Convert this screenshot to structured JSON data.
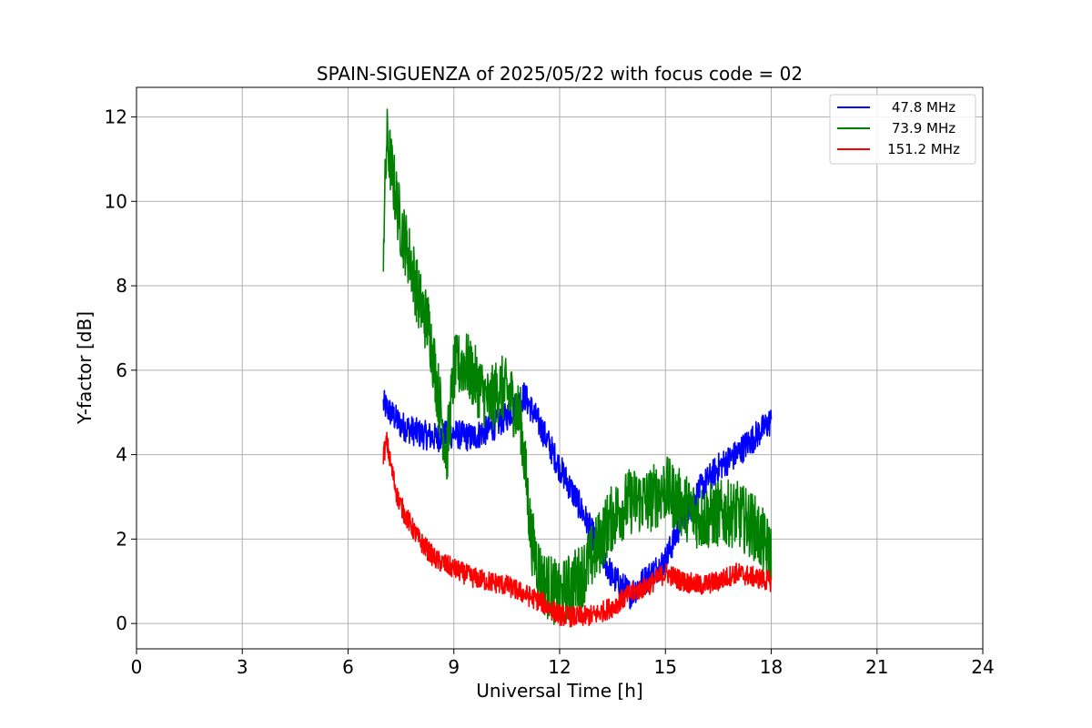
{
  "chart_data": {
    "type": "line",
    "title": "SPAIN-SIGUENZA of 2025/05/22 with focus code = 02",
    "xlabel": "Universal Time [h]",
    "ylabel": "Y-factor [dB]",
    "xlim": [
      0,
      24
    ],
    "ylim": [
      -0.6,
      12.7
    ],
    "xticks": [
      0,
      3,
      6,
      9,
      12,
      15,
      18,
      21,
      24
    ],
    "yticks": [
      0,
      2,
      4,
      6,
      8,
      10,
      12
    ],
    "grid": true,
    "legend_position": "top-right",
    "series": [
      {
        "name": "47.8 MHz",
        "color": "#0000ff",
        "noise": 0.35,
        "x": [
          7.0,
          7.2,
          7.5,
          8.0,
          8.5,
          9.0,
          9.5,
          10.0,
          10.5,
          11.0,
          11.5,
          12.0,
          12.5,
          13.0,
          13.5,
          14.0,
          14.5,
          15.0,
          15.5,
          16.0,
          16.5,
          17.0,
          17.5,
          18.0
        ],
        "y": [
          5.2,
          5.0,
          4.7,
          4.5,
          4.4,
          4.5,
          4.4,
          4.6,
          4.9,
          5.4,
          4.6,
          3.7,
          2.9,
          2.0,
          1.1,
          0.7,
          1.1,
          1.5,
          2.5,
          3.2,
          3.7,
          4.0,
          4.4,
          4.8
        ]
      },
      {
        "name": "73.9 MHz",
        "color": "#008000",
        "noise": 0.8,
        "x": [
          7.0,
          7.1,
          7.3,
          7.5,
          7.8,
          8.0,
          8.3,
          8.5,
          8.8,
          9.0,
          9.3,
          9.6,
          10.0,
          10.3,
          10.6,
          10.9,
          11.2,
          11.5,
          11.8,
          12.0,
          12.3,
          12.6,
          13.0,
          13.4,
          13.7,
          14.0,
          14.5,
          15.0,
          15.5,
          16.0,
          16.5,
          17.0,
          17.5,
          18.0
        ],
        "y": [
          9.0,
          11.5,
          10.4,
          9.4,
          8.5,
          7.7,
          7.0,
          5.8,
          4.0,
          6.0,
          6.2,
          5.8,
          5.2,
          5.6,
          5.4,
          4.8,
          2.0,
          1.0,
          0.8,
          0.6,
          0.9,
          1.1,
          1.7,
          2.4,
          2.7,
          2.9,
          2.9,
          3.2,
          2.8,
          2.5,
          2.6,
          2.6,
          2.3,
          1.6
        ]
      },
      {
        "name": "151.2 MHz",
        "color": "#ff0000",
        "noise": 0.25,
        "x": [
          7.0,
          7.1,
          7.2,
          7.4,
          7.6,
          8.0,
          8.5,
          9.0,
          9.5,
          10.0,
          10.5,
          11.0,
          11.5,
          12.0,
          12.5,
          13.0,
          13.5,
          14.0,
          14.5,
          15.0,
          15.5,
          16.0,
          16.5,
          17.0,
          17.5,
          18.0
        ],
        "y": [
          4.0,
          4.3,
          3.8,
          3.0,
          2.6,
          2.0,
          1.5,
          1.3,
          1.1,
          1.0,
          0.9,
          0.7,
          0.5,
          0.2,
          0.15,
          0.2,
          0.4,
          0.7,
          0.9,
          1.2,
          1.0,
          0.9,
          1.0,
          1.2,
          1.1,
          1.0
        ]
      }
    ]
  }
}
